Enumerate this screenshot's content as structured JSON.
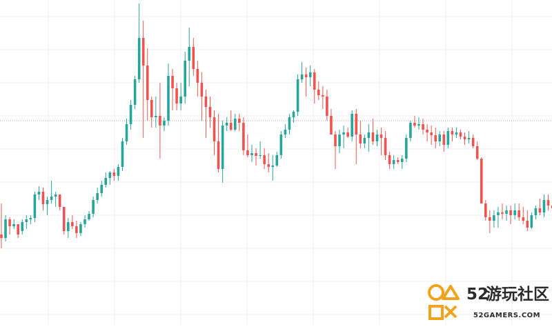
{
  "chart_data": {
    "type": "candlestick",
    "grid": true,
    "xlim": [
      1,
      133
    ],
    "ylim": [
      0,
      472
    ],
    "reference_line": 175,
    "up_color": "#26a69a",
    "down_color": "#ef5350",
    "grid_color": "#eef0f3",
    "reference_line_color": "#9aa0a6",
    "ohlc": [
      [
        340,
        295,
        360,
        345
      ],
      [
        345,
        312,
        350,
        318
      ],
      [
        318,
        315,
        340,
        328
      ],
      [
        328,
        318,
        332,
        325
      ],
      [
        325,
        328,
        345,
        340
      ],
      [
        335,
        318,
        340,
        322
      ],
      [
        322,
        312,
        332,
        318
      ],
      [
        318,
        312,
        325,
        316
      ],
      [
        316,
        278,
        322,
        282
      ],
      [
        282,
        270,
        290,
        278
      ],
      [
        278,
        272,
        305,
        296
      ],
      [
        296,
        285,
        312,
        290
      ],
      [
        290,
        262,
        295,
        285
      ],
      [
        285,
        278,
        300,
        282
      ],
      [
        282,
        282,
        305,
        300
      ],
      [
        300,
        312,
        340,
        335
      ],
      [
        335,
        316,
        345,
        322
      ],
      [
        322,
        312,
        332,
        328
      ],
      [
        328,
        320,
        345,
        338
      ],
      [
        338,
        322,
        342,
        325
      ],
      [
        325,
        312,
        330,
        318
      ],
      [
        318,
        306,
        320,
        310
      ],
      [
        310,
        285,
        315,
        290
      ],
      [
        290,
        272,
        295,
        280
      ],
      [
        280,
        262,
        285,
        268
      ],
      [
        268,
        250,
        272,
        258
      ],
      [
        258,
        248,
        268,
        250
      ],
      [
        250,
        245,
        262,
        255
      ],
      [
        255,
        238,
        262,
        242
      ],
      [
        242,
        200,
        248,
        205
      ],
      [
        205,
        172,
        210,
        180
      ],
      [
        180,
        145,
        188,
        152
      ],
      [
        152,
        110,
        158,
        115
      ],
      [
        115,
        5,
        120,
        55
      ],
      [
        55,
        30,
        200,
        95
      ],
      [
        95,
        70,
        175,
        145
      ],
      [
        145,
        140,
        185,
        170
      ],
      [
        170,
        140,
        185,
        168
      ],
      [
        168,
        120,
        230,
        182
      ],
      [
        182,
        170,
        190,
        175
      ],
      [
        175,
        92,
        182,
        110
      ],
      [
        110,
        100,
        160,
        128
      ],
      [
        128,
        120,
        160,
        150
      ],
      [
        150,
        120,
        160,
        140
      ],
      [
        140,
        75,
        150,
        88
      ],
      [
        88,
        40,
        125,
        68
      ],
      [
        68,
        55,
        110,
        100
      ],
      [
        100,
        88,
        140,
        120
      ],
      [
        120,
        105,
        175,
        140
      ],
      [
        140,
        130,
        200,
        155
      ],
      [
        155,
        140,
        185,
        170
      ],
      [
        170,
        160,
        225,
        205
      ],
      [
        205,
        165,
        250,
        245
      ],
      [
        245,
        175,
        265,
        182
      ],
      [
        182,
        170,
        190,
        178
      ],
      [
        178,
        160,
        190,
        188
      ],
      [
        188,
        165,
        190,
        172
      ],
      [
        172,
        165,
        190,
        178
      ],
      [
        178,
        170,
        225,
        218
      ],
      [
        218,
        195,
        228,
        225
      ],
      [
        225,
        210,
        235,
        222
      ],
      [
        222,
        215,
        240,
        226
      ],
      [
        226,
        205,
        230,
        225
      ],
      [
        225,
        215,
        245,
        238
      ],
      [
        238,
        222,
        250,
        242
      ],
      [
        242,
        225,
        262,
        240
      ],
      [
        240,
        220,
        242,
        225
      ],
      [
        225,
        190,
        230,
        195
      ],
      [
        195,
        180,
        200,
        188
      ],
      [
        188,
        165,
        195,
        170
      ],
      [
        170,
        160,
        178,
        162
      ],
      [
        162,
        108,
        168,
        115
      ],
      [
        115,
        90,
        120,
        108
      ],
      [
        108,
        98,
        140,
        112
      ],
      [
        112,
        95,
        125,
        105
      ],
      [
        105,
        100,
        150,
        130
      ],
      [
        130,
        118,
        145,
        138
      ],
      [
        138,
        125,
        158,
        140
      ],
      [
        140,
        130,
        175,
        168
      ],
      [
        168,
        158,
        195,
        195
      ],
      [
        195,
        190,
        245,
        212
      ],
      [
        212,
        188,
        222,
        195
      ],
      [
        195,
        182,
        215,
        192
      ],
      [
        192,
        185,
        200,
        198
      ],
      [
        198,
        160,
        205,
        165
      ],
      [
        165,
        158,
        238,
        195
      ],
      [
        195,
        175,
        215,
        208
      ],
      [
        208,
        195,
        215,
        200
      ],
      [
        200,
        180,
        220,
        192
      ],
      [
        192,
        172,
        210,
        205
      ],
      [
        205,
        188,
        212,
        195
      ],
      [
        195,
        185,
        225,
        200
      ],
      [
        200,
        190,
        232,
        225
      ],
      [
        225,
        220,
        245,
        238
      ],
      [
        238,
        225,
        245,
        232
      ],
      [
        232,
        228,
        238,
        235
      ],
      [
        235,
        225,
        245,
        230
      ],
      [
        230,
        195,
        235,
        200
      ],
      [
        200,
        175,
        205,
        178
      ],
      [
        178,
        168,
        185,
        182
      ],
      [
        182,
        170,
        188,
        180
      ],
      [
        180,
        172,
        195,
        188
      ],
      [
        188,
        180,
        205,
        192
      ],
      [
        192,
        182,
        210,
        196
      ],
      [
        196,
        185,
        215,
        205
      ],
      [
        205,
        190,
        212,
        195
      ],
      [
        195,
        190,
        220,
        210
      ],
      [
        210,
        185,
        215,
        190
      ],
      [
        190,
        185,
        205,
        195
      ],
      [
        195,
        185,
        200,
        192
      ],
      [
        192,
        188,
        202,
        198
      ],
      [
        198,
        192,
        210,
        202
      ],
      [
        202,
        190,
        208,
        200
      ],
      [
        200,
        195,
        215,
        212
      ],
      [
        212,
        205,
        232,
        230
      ],
      [
        230,
        228,
        295,
        295
      ],
      [
        295,
        290,
        320,
        315
      ],
      [
        315,
        305,
        338,
        320
      ],
      [
        320,
        305,
        330,
        312
      ],
      [
        312,
        300,
        330,
        308
      ],
      [
        308,
        295,
        318,
        310
      ],
      [
        310,
        298,
        320,
        305
      ],
      [
        305,
        298,
        325,
        312
      ],
      [
        312,
        295,
        318,
        305
      ],
      [
        305,
        295,
        320,
        315
      ],
      [
        315,
        300,
        325,
        320
      ],
      [
        320,
        305,
        335,
        330
      ],
      [
        330,
        308,
        332,
        312
      ],
      [
        312,
        298,
        318,
        302
      ],
      [
        302,
        288,
        312,
        308
      ],
      [
        308,
        282,
        315,
        290
      ],
      [
        290,
        282,
        305,
        298
      ],
      [
        298,
        282,
        305,
        302
      ],
      [
        302,
        295,
        312,
        305
      ],
      [
        305,
        298,
        322,
        318
      ]
    ]
  },
  "watermark": {
    "brand_number": "52",
    "brand_text": "游玩社区",
    "site": "52GAMERS.COM"
  }
}
